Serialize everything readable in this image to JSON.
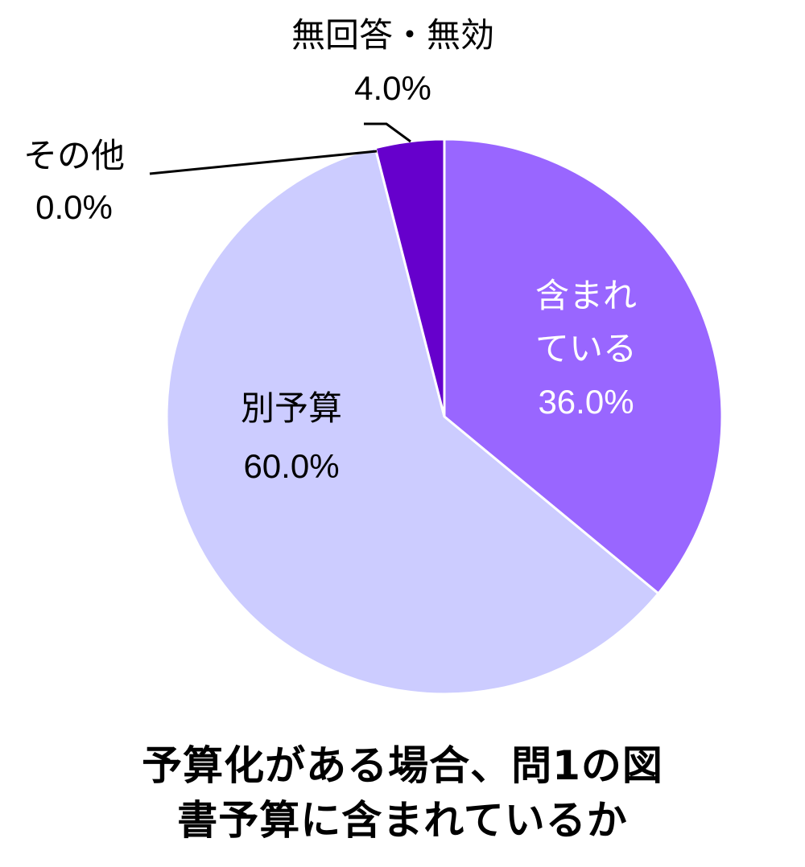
{
  "chart_data": {
    "type": "pie",
    "start_angle_deg": 0,
    "direction": "clockwise",
    "slices": [
      {
        "label": "含まれ\nている",
        "value": 36.0,
        "value_label": "36.0%",
        "color": "#9966FF",
        "text_color": "#ffffff"
      },
      {
        "label": "別予算",
        "value": 60.0,
        "value_label": "60.0%",
        "color": "#CCCCFF",
        "text_color": "#000000"
      },
      {
        "label": "その他",
        "value": 0.0,
        "value_label": "0.0%",
        "color": "#CCCCFF",
        "text_color": "#000000"
      },
      {
        "label": "無回答・無効",
        "value": 4.0,
        "value_label": "4.0%",
        "color": "#6600CC",
        "text_color": "#000000"
      }
    ],
    "title_lines": [
      "予算化がある場合、問1の図",
      "書予算に含まれているか"
    ]
  }
}
